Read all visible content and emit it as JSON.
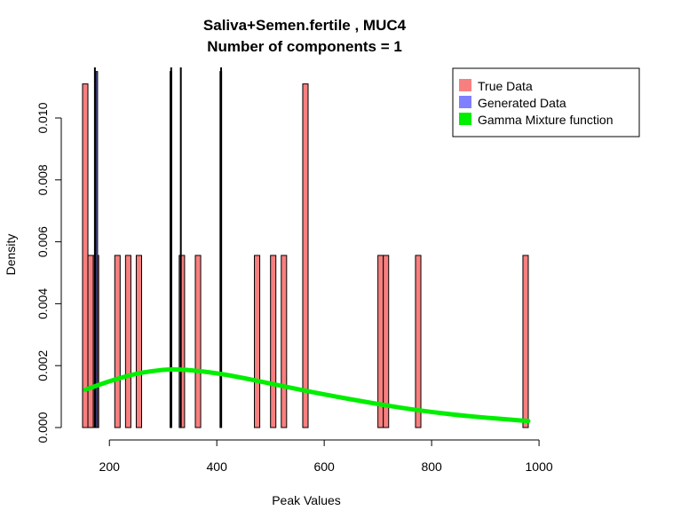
{
  "chart_data": {
    "type": "bar",
    "title": "Saliva+Semen.fertile , MUC4",
    "subtitle": "Number of components =  1",
    "xlabel": "Peak Values",
    "ylabel": "Density",
    "xlim": [
      150,
      1000
    ],
    "ylim": [
      0,
      0.0115
    ],
    "x_ticks": [
      200,
      400,
      600,
      800,
      1000
    ],
    "y_ticks": [
      0.0,
      0.002,
      0.004,
      0.006,
      0.008,
      0.01
    ],
    "y_tick_labels": [
      "0.000",
      "0.002",
      "0.004",
      "0.006",
      "0.008",
      "0.010"
    ],
    "bin_width": 10,
    "legend_position": "top-right",
    "series": [
      {
        "name": "True Data",
        "color": "#F87F7F",
        "bars": [
          {
            "x0": 150,
            "x1": 160,
            "y": 0.0111
          },
          {
            "x0": 160,
            "x1": 170,
            "y": 0.00556
          },
          {
            "x0": 170,
            "x1": 180,
            "y": 0.00556
          },
          {
            "x0": 210,
            "x1": 220,
            "y": 0.00556
          },
          {
            "x0": 230,
            "x1": 240,
            "y": 0.00556
          },
          {
            "x0": 250,
            "x1": 260,
            "y": 0.00556
          },
          {
            "x0": 330,
            "x1": 340,
            "y": 0.00556
          },
          {
            "x0": 360,
            "x1": 370,
            "y": 0.00556
          },
          {
            "x0": 470,
            "x1": 480,
            "y": 0.00556
          },
          {
            "x0": 500,
            "x1": 510,
            "y": 0.00556
          },
          {
            "x0": 520,
            "x1": 530,
            "y": 0.00556
          },
          {
            "x0": 560,
            "x1": 570,
            "y": 0.0111
          },
          {
            "x0": 700,
            "x1": 710,
            "y": 0.00556
          },
          {
            "x0": 710,
            "x1": 720,
            "y": 0.00556
          },
          {
            "x0": 770,
            "x1": 780,
            "y": 0.00556
          },
          {
            "x0": 970,
            "x1": 980,
            "y": 0.00556
          }
        ]
      },
      {
        "name": "Generated Data",
        "color": "#7F7FFF",
        "bars": [
          {
            "x0": 175,
            "x1": 178,
            "y": 0.0115
          },
          {
            "x0": 313,
            "x1": 316,
            "y": 0.0115
          },
          {
            "x0": 406,
            "x1": 409,
            "y": 0.0115
          }
        ]
      },
      {
        "name": "Gamma Mixture function",
        "color": "#00EE00",
        "x": [
          155,
          200,
          250,
          300,
          320,
          350,
          400,
          450,
          500,
          550,
          600,
          650,
          700,
          750,
          800,
          850,
          900,
          950,
          980
        ],
        "y": [
          0.00122,
          0.0015,
          0.00175,
          0.00187,
          0.00188,
          0.00186,
          0.00176,
          0.0016,
          0.00142,
          0.00124,
          0.00107,
          0.00091,
          0.00076,
          0.00062,
          0.0005,
          0.0004,
          0.00032,
          0.00025,
          0.00021
        ]
      }
    ],
    "vertical_lines": {
      "color": "#000000",
      "x": [
        173,
        315,
        333,
        408
      ]
    }
  }
}
